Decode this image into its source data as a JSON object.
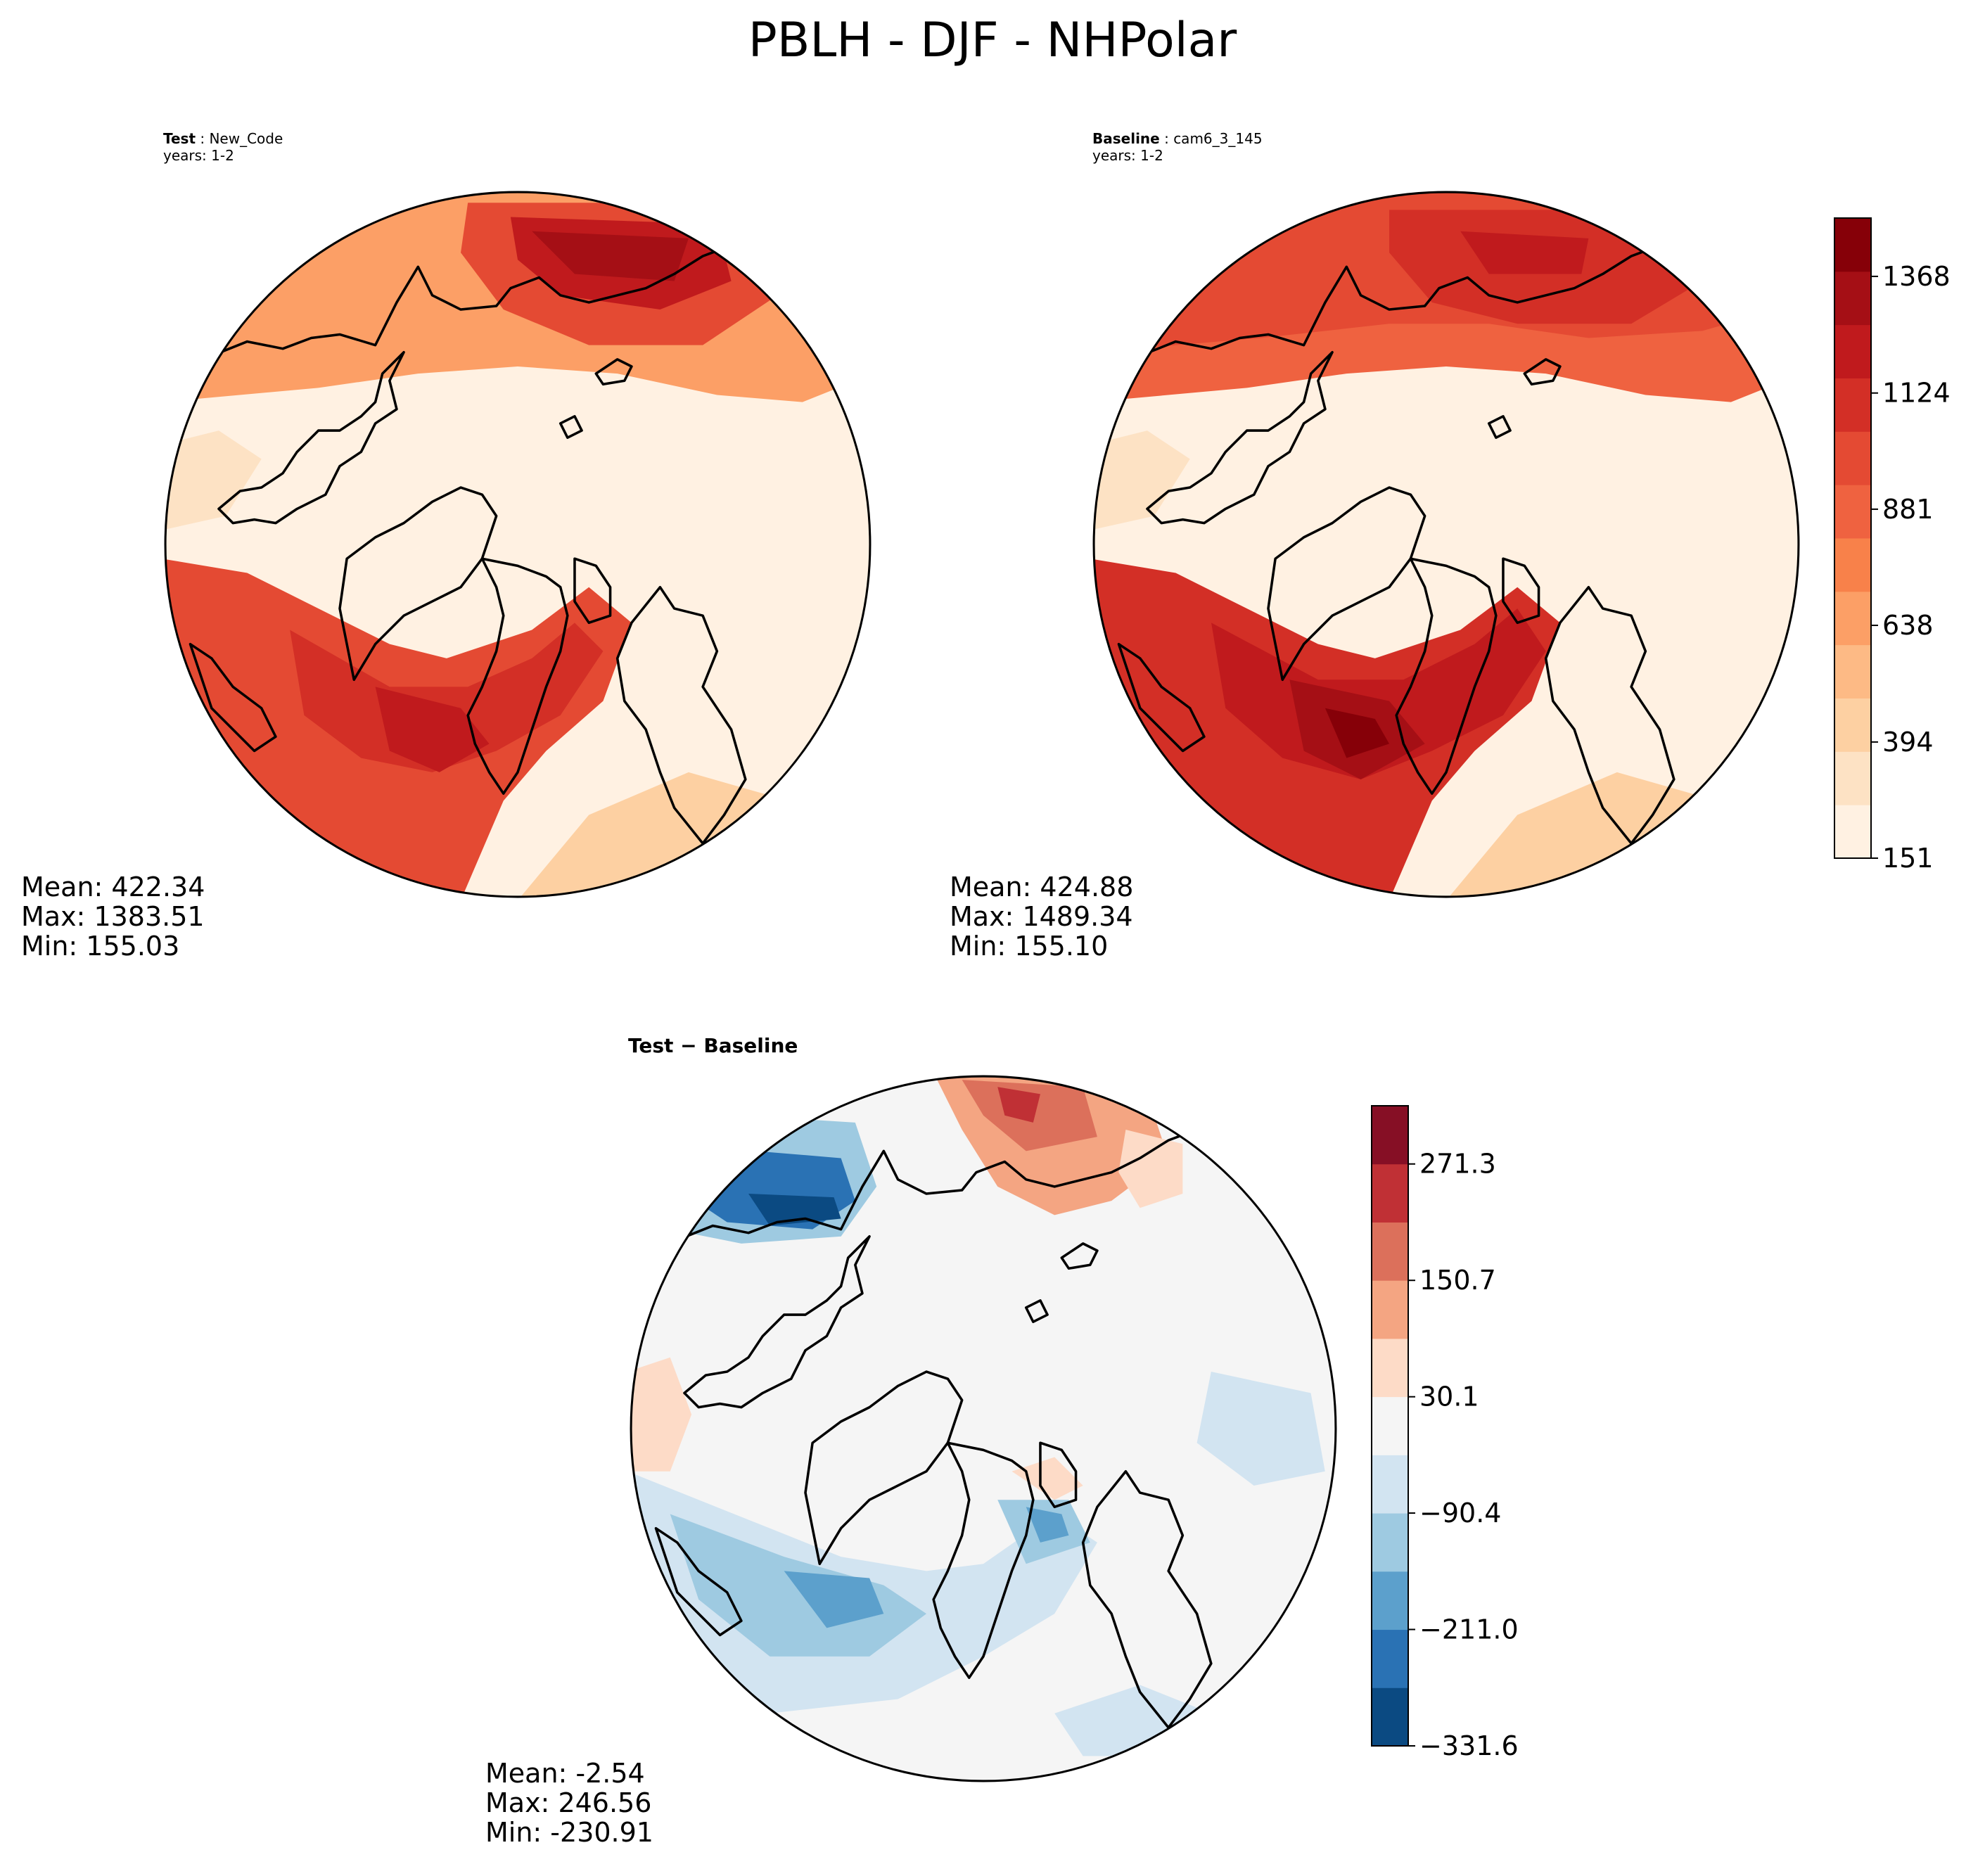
{
  "figure_title": "PBLH - DJF - NHPolar",
  "panels": {
    "test": {
      "label": "Test",
      "name": "New_Code",
      "years": "years: 1-2",
      "stats": {
        "mean": "Mean: 422.34",
        "max": "Max: 1383.51",
        "min": "Min: 155.03"
      }
    },
    "baseline": {
      "label": "Baseline",
      "name": "cam6_3_145",
      "years": "years: 1-2",
      "stats": {
        "mean": "Mean: 424.88",
        "max": "Max: 1489.34",
        "min": "Min: 155.10"
      }
    },
    "diff": {
      "title": "Test − Baseline",
      "stats": {
        "mean": "Mean: -2.54",
        "max": "Max: 246.56",
        "min": "Min: -230.91"
      }
    }
  },
  "chart_data": [
    {
      "type": "heatmap",
      "panel": "test",
      "projection": "north polar stereographic",
      "mean": 422.34,
      "max": 1383.51,
      "min": 155.03,
      "colormap": "Reds (light to dark)"
    },
    {
      "type": "heatmap",
      "panel": "baseline",
      "projection": "north polar stereographic",
      "mean": 424.88,
      "max": 1489.34,
      "min": 155.1,
      "colormap": "Reds (light to dark)"
    },
    {
      "type": "heatmap",
      "panel": "diff",
      "projection": "north polar stereographic",
      "mean": -2.54,
      "max": 246.56,
      "min": -230.91,
      "colormap": "RdBu diverging"
    }
  ],
  "colorbar_main": {
    "range": [
      151,
      1490
    ],
    "ticks": [
      151,
      394,
      638,
      881,
      1124,
      1368
    ],
    "tick_labels": [
      "151",
      "394",
      "638",
      "881",
      "1124",
      "1368"
    ],
    "colors": [
      "#fff1e2",
      "#fde2c4",
      "#fdd0a2",
      "#fdba85",
      "#fc9f66",
      "#f8814a",
      "#ef6240",
      "#e44a33",
      "#d32f26",
      "#c01a1d",
      "#a50f15",
      "#860008"
    ]
  },
  "colorbar_diff": {
    "range": [
      -331.6,
      331.6
    ],
    "ticks": [
      -331.6,
      -211.0,
      -90.4,
      30.1,
      150.7,
      271.3
    ],
    "tick_labels": [
      "−331.6",
      "−211.0",
      "−90.4",
      "30.1",
      "150.7",
      "271.3"
    ],
    "colors": [
      "#0b4a82",
      "#2a72b4",
      "#5ca0cc",
      "#9ecae1",
      "#d2e4f1",
      "#f5f5f5",
      "#fddbc7",
      "#f4a582",
      "#dc705b",
      "#c03035",
      "#860f25"
    ]
  }
}
